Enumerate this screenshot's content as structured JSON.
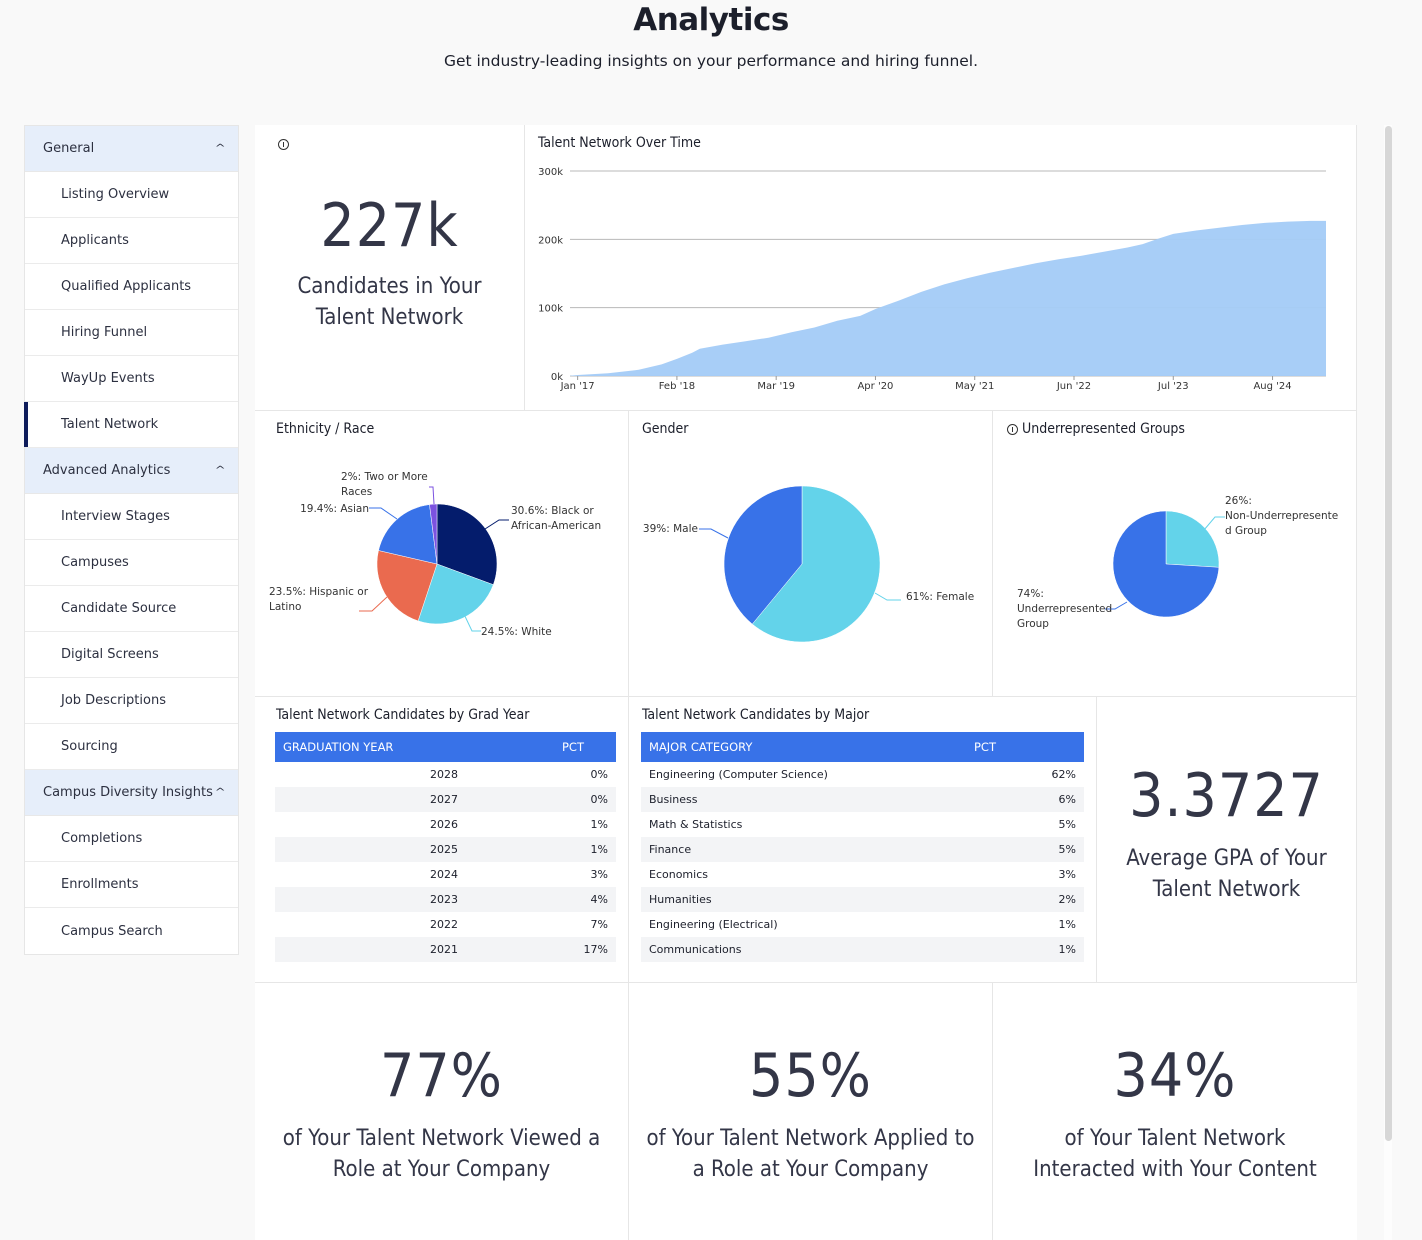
{
  "header": {
    "title": "Analytics",
    "subtitle": "Get industry-leading insights on your performance and hiring funnel."
  },
  "sidebar": {
    "groups": [
      {
        "label": "General",
        "items": [
          "Listing Overview",
          "Applicants",
          "Qualified Applicants",
          "Hiring Funnel",
          "WayUp Events",
          "Talent Network"
        ]
      },
      {
        "label": "Advanced Analytics",
        "items": [
          "Interview Stages",
          "Campuses",
          "Candidate Source",
          "Digital Screens",
          "Job Descriptions",
          "Sourcing"
        ]
      },
      {
        "label": "Campus Diversity Insights",
        "items": [
          "Completions",
          "Enrollments",
          "Campus Search"
        ]
      }
    ],
    "active_item": "Talent Network",
    "chevron_icon": "chevron-up-icon"
  },
  "kpis": {
    "talent_network": {
      "value": "227k",
      "label": "Candidates in Your Talent Network",
      "icon": "info-icon"
    },
    "gpa": {
      "value": "3.3727",
      "label": "Average GPA of Your Talent Network"
    },
    "viewed": {
      "value": "77%",
      "label": "of Your Talent Network Viewed a Role at Your Company"
    },
    "applied": {
      "value": "55%",
      "label": "of Your Talent Network Applied to a Role at Your Company"
    },
    "interacted": {
      "value": "34%",
      "label": "of Your Talent Network Interacted with Your Content"
    }
  },
  "colors": {
    "area": "#a3cbf7",
    "navy": "#041c6c",
    "cyan": "#63d3ea",
    "blue": "#3872e8",
    "coral": "#ea6a4f",
    "purple": "#7b52e0",
    "table_header": "#3872e8"
  },
  "chart_data": [
    {
      "type": "area",
      "title": "Talent Network Over Time",
      "xlabel": "",
      "ylabel": "",
      "ylim": [
        0,
        300000
      ],
      "yticks": [
        "0k",
        "100k",
        "200k",
        "300k"
      ],
      "ytick_values": [
        0,
        100000,
        200000,
        300000
      ],
      "xticks": [
        "Jan '17",
        "Feb '18",
        "Mar '19",
        "Apr '20",
        "May '21",
        "Jun '22",
        "Jul '23",
        "Aug '24"
      ],
      "xtick_months": [
        0,
        13,
        26,
        39,
        52,
        65,
        78,
        91
      ],
      "x_unit": "months since Jan 2017",
      "xlim": [
        -1,
        98
      ],
      "grid": true,
      "x": [
        -1,
        0,
        4,
        8,
        11,
        13,
        15,
        16,
        19,
        22,
        25,
        28,
        31,
        34,
        37,
        39,
        42,
        45,
        48,
        51,
        54,
        57,
        60,
        63,
        66,
        69,
        72,
        74,
        76,
        78,
        81,
        84,
        87,
        90,
        93,
        96,
        98
      ],
      "values": [
        500,
        1500,
        4000,
        9000,
        17000,
        25000,
        34000,
        40000,
        46000,
        51000,
        56000,
        64000,
        71000,
        81000,
        88000,
        98000,
        110000,
        123000,
        134000,
        143000,
        151000,
        158000,
        165000,
        171000,
        176000,
        182000,
        188000,
        193000,
        201000,
        208000,
        213000,
        217000,
        221000,
        224000,
        226000,
        227000,
        227000
      ]
    },
    {
      "type": "pie",
      "title": "Ethnicity / Race",
      "slices": [
        {
          "label": "30.6%: Black or African-American",
          "value": 30.6,
          "color": "#041c6c"
        },
        {
          "label": "24.5%: White",
          "value": 24.5,
          "color": "#63d3ea"
        },
        {
          "label": "23.5%: Hispanic or Latino",
          "value": 23.5,
          "color": "#ea6a4f"
        },
        {
          "label": "19.4%: Asian",
          "value": 19.4,
          "color": "#3872e8"
        },
        {
          "label": "2%: Two or More Races",
          "value": 2,
          "color": "#7b52e0"
        }
      ]
    },
    {
      "type": "pie",
      "title": "Gender",
      "slices": [
        {
          "label": "61%: Female",
          "value": 61,
          "color": "#63d3ea"
        },
        {
          "label": "39%: Male",
          "value": 39,
          "color": "#3872e8"
        }
      ]
    },
    {
      "type": "pie",
      "title": "Underrepresented Groups",
      "slices": [
        {
          "label": "26%: Non-Underrepresented Group",
          "value": 26,
          "color": "#63d3ea"
        },
        {
          "label": "74%: Underrepresented Group",
          "value": 74,
          "color": "#3872e8"
        }
      ]
    },
    {
      "type": "table",
      "title": "Talent Network Candidates by Grad Year",
      "columns": [
        "GRADUATION YEAR",
        "PCT"
      ],
      "rows": [
        [
          "2028",
          "0%"
        ],
        [
          "2027",
          "0%"
        ],
        [
          "2026",
          "1%"
        ],
        [
          "2025",
          "1%"
        ],
        [
          "2024",
          "3%"
        ],
        [
          "2023",
          "4%"
        ],
        [
          "2022",
          "7%"
        ],
        [
          "2021",
          "17%"
        ]
      ]
    },
    {
      "type": "table",
      "title": "Talent Network Candidates by Major",
      "columns": [
        "MAJOR CATEGORY",
        "PCT"
      ],
      "rows": [
        [
          "Engineering (Computer Science)",
          "62%"
        ],
        [
          "Business",
          "6%"
        ],
        [
          "Math & Statistics",
          "5%"
        ],
        [
          "Finance",
          "5%"
        ],
        [
          "Economics",
          "3%"
        ],
        [
          "Humanities",
          "2%"
        ],
        [
          "Engineering (Electrical)",
          "1%"
        ],
        [
          "Communications",
          "1%"
        ]
      ]
    }
  ],
  "pie_labels": {
    "ethnicity": {
      "black": [
        "30.6%: Black or",
        "African-American"
      ],
      "white": [
        "24.5%: White"
      ],
      "hispanic": [
        "23.5%: Hispanic or",
        "Latino"
      ],
      "asian": [
        "19.4%: Asian"
      ],
      "two": [
        "2%: Two or More",
        "Races"
      ]
    },
    "gender": {
      "female": [
        "61%: Female"
      ],
      "male": [
        "39%: Male"
      ]
    },
    "urg": {
      "non": [
        "26%:",
        "Non-Underrepresente",
        "d Group"
      ],
      "urg": [
        "74%:",
        "Underrepresented",
        "Group"
      ]
    }
  }
}
